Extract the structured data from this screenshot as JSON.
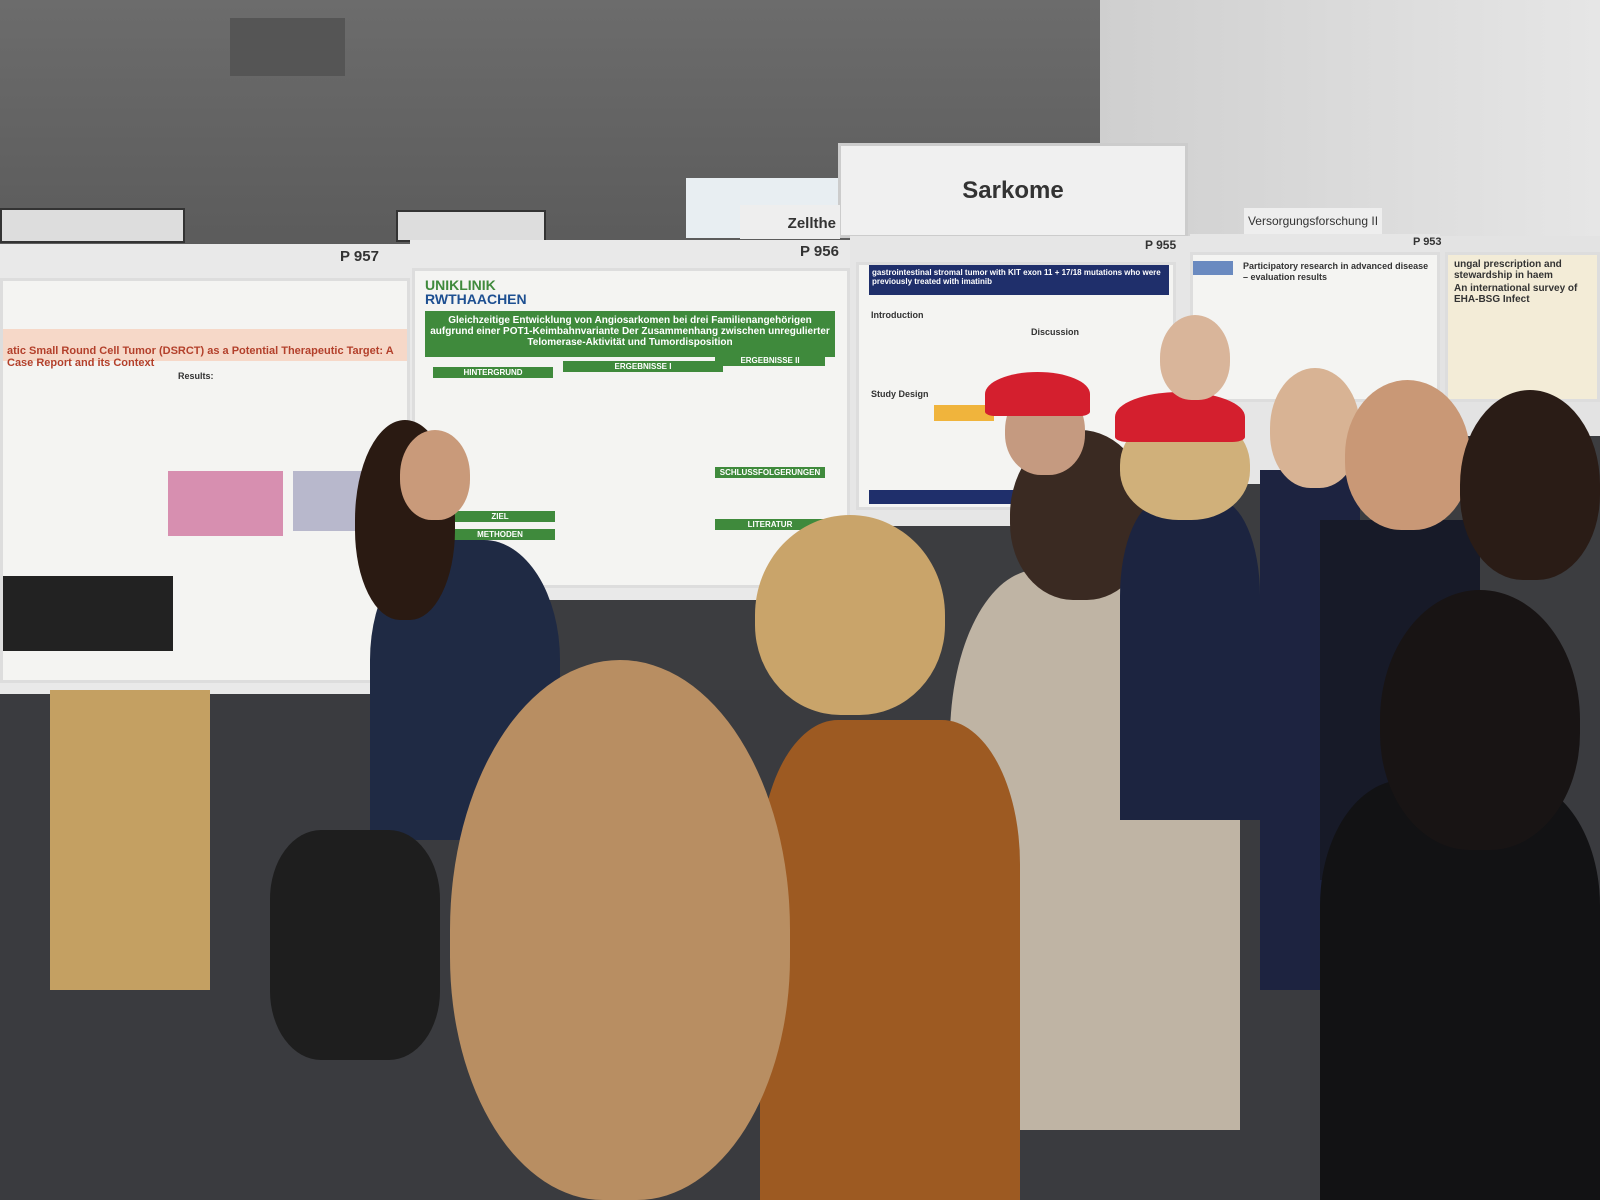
{
  "signs": {
    "section": "Sarkome",
    "left_section": "Zellthe",
    "right_section": "Versorgungsforschung II"
  },
  "posters": [
    {
      "number": "P 957",
      "title": "atic Small Round Cell Tumor (DSRCT) as a Potential Therapeutic Target: A Case Report and its Context",
      "label": "Results:"
    },
    {
      "number": "P 956",
      "logo_top": "UNIKLINIK",
      "logo_bottom": "RWTHAACHEN",
      "title": "Gleichzeitige Entwicklung von Angiosarkomen bei drei Familienangehörigen aufgrund einer POT1-Keimbahnvariante Der Zusammenhang zwischen unregulierter Telomerase-Aktivität und Tumordisposition",
      "sections": [
        "HINTERGRUND",
        "ERGEBNISSE I",
        "ERGEBNISSE II",
        "ZIEL",
        "METHODEN",
        "SCHLUSSFOLGERUNGEN",
        "LITERATUR"
      ]
    },
    {
      "number": "P 955",
      "title": "gastrointestinal stromal tumor with KIT exon 11 + 17/18 mutations who were previously treated with imatinib",
      "sections": [
        "Introduction",
        "Study Design",
        "Discussion"
      ]
    },
    {
      "number": "P 953",
      "title": "Participatory research in advanced disease – evaluation results"
    },
    {
      "title": "ungal prescription and stewardship in haem",
      "subtitle": "An international survey of EHA-BSG Infect"
    }
  ]
}
